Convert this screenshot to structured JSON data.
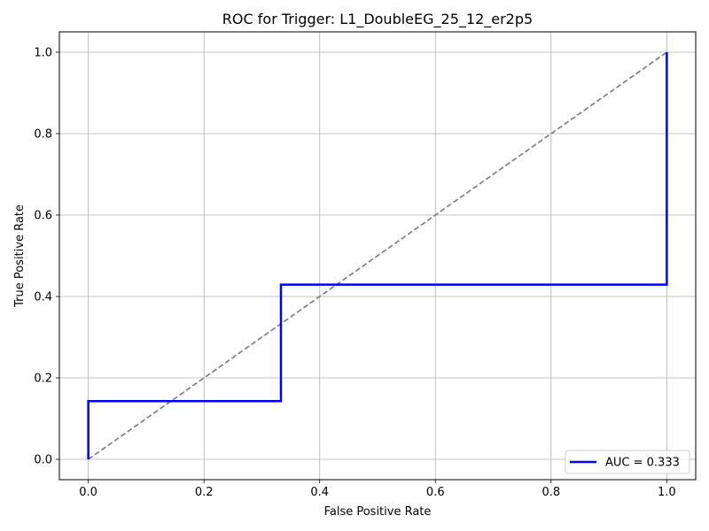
{
  "chart_data": {
    "type": "line",
    "title": "ROC for Trigger: L1_DoubleEG_25_12_er2p5",
    "xlabel": "False Positive Rate",
    "ylabel": "True Positive Rate",
    "xlim": [
      -0.05,
      1.05
    ],
    "ylim": [
      -0.05,
      1.05
    ],
    "xticks": [
      0.0,
      0.2,
      0.4,
      0.6,
      0.8,
      1.0
    ],
    "yticks": [
      0.0,
      0.2,
      0.4,
      0.6,
      0.8,
      1.0
    ],
    "xtick_labels": [
      "0.0",
      "0.2",
      "0.4",
      "0.6",
      "0.8",
      "1.0"
    ],
    "ytick_labels": [
      "0.0",
      "0.2",
      "0.4",
      "0.6",
      "0.8",
      "1.0"
    ],
    "grid": true,
    "legend_position": "lower-right",
    "series": [
      {
        "name": "AUC = 0.333",
        "color": "#0000ff",
        "style": "solid",
        "x": [
          0.0,
          0.0,
          0.333,
          0.333,
          1.0,
          1.0
        ],
        "y": [
          0.0,
          0.143,
          0.143,
          0.429,
          0.429,
          1.0
        ]
      },
      {
        "color": "#808080",
        "style": "dashed",
        "x": [
          0.0,
          1.0
        ],
        "y": [
          0.0,
          1.0
        ]
      }
    ]
  }
}
